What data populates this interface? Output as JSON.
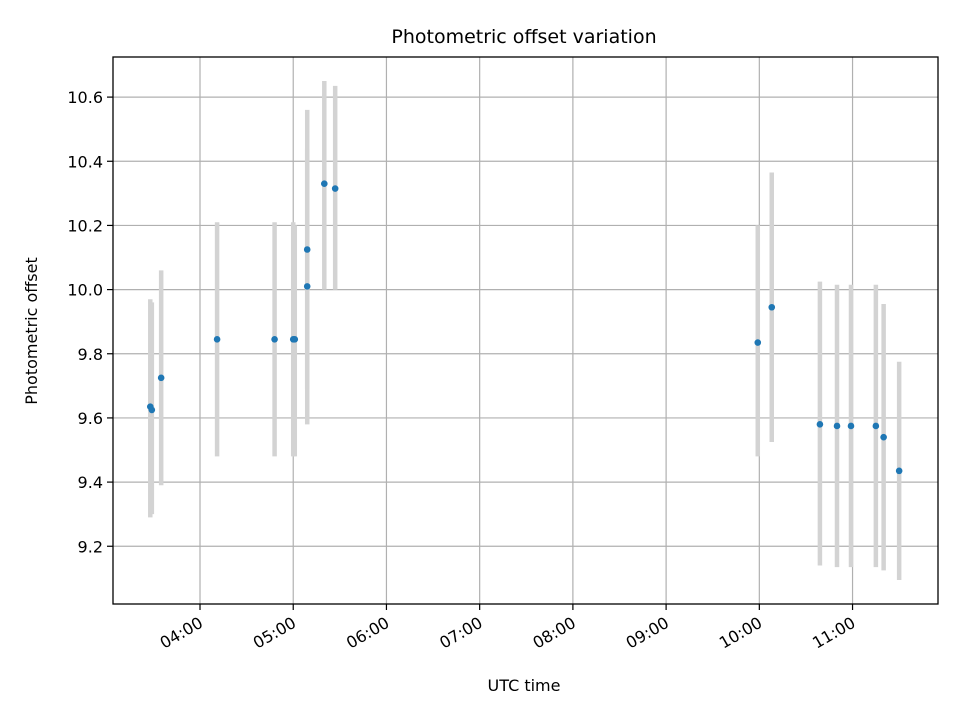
{
  "chart_data": {
    "type": "scatter",
    "title": "Photometric offset variation",
    "xlabel": "UTC time",
    "ylabel": "Photometric offset",
    "x_format": "HH:MM",
    "xlim": [
      "03:04",
      "11:55"
    ],
    "ylim": [
      9.02,
      10.725
    ],
    "x_ticks": [
      "04:00",
      "05:00",
      "06:00",
      "07:00",
      "08:00",
      "09:00",
      "10:00",
      "11:00"
    ],
    "y_ticks": [
      9.2,
      9.4,
      9.6,
      9.8,
      10.0,
      10.2,
      10.4,
      10.6
    ],
    "grid": true,
    "point_color": "#1f77b4",
    "errorbar_color": "#d3d3d3",
    "points": [
      {
        "time": "03:28",
        "y": 9.635,
        "low": 9.29,
        "high": 9.97
      },
      {
        "time": "03:29",
        "y": 9.625,
        "low": 9.3,
        "high": 9.96
      },
      {
        "time": "03:35",
        "y": 9.725,
        "low": 9.39,
        "high": 10.06
      },
      {
        "time": "04:11",
        "y": 9.845,
        "low": 9.48,
        "high": 10.21
      },
      {
        "time": "04:48",
        "y": 9.845,
        "low": 9.48,
        "high": 10.21
      },
      {
        "time": "05:00",
        "y": 9.845,
        "low": 9.48,
        "high": 10.21
      },
      {
        "time": "05:01",
        "y": 9.845,
        "low": 9.48,
        "high": 10.2
      },
      {
        "time": "05:09",
        "y": 10.01,
        "low": 9.69,
        "high": 10.44
      },
      {
        "time": "05:09",
        "y": 10.125,
        "low": 9.58,
        "high": 10.56
      },
      {
        "time": "05:20",
        "y": 10.33,
        "low": 10.0,
        "high": 10.65
      },
      {
        "time": "05:27",
        "y": 10.315,
        "low": 10.0,
        "high": 10.635
      },
      {
        "time": "09:59",
        "y": 9.835,
        "low": 9.48,
        "high": 10.2
      },
      {
        "time": "10:08",
        "y": 9.945,
        "low": 9.525,
        "high": 10.365
      },
      {
        "time": "10:39",
        "y": 9.58,
        "low": 9.14,
        "high": 10.025
      },
      {
        "time": "10:50",
        "y": 9.575,
        "low": 9.135,
        "high": 10.015
      },
      {
        "time": "10:59",
        "y": 9.575,
        "low": 9.135,
        "high": 10.015
      },
      {
        "time": "11:15",
        "y": 9.575,
        "low": 9.135,
        "high": 10.015
      },
      {
        "time": "11:20",
        "y": 9.54,
        "low": 9.125,
        "high": 9.955
      },
      {
        "time": "11:30",
        "y": 9.435,
        "low": 9.095,
        "high": 9.775
      }
    ]
  }
}
